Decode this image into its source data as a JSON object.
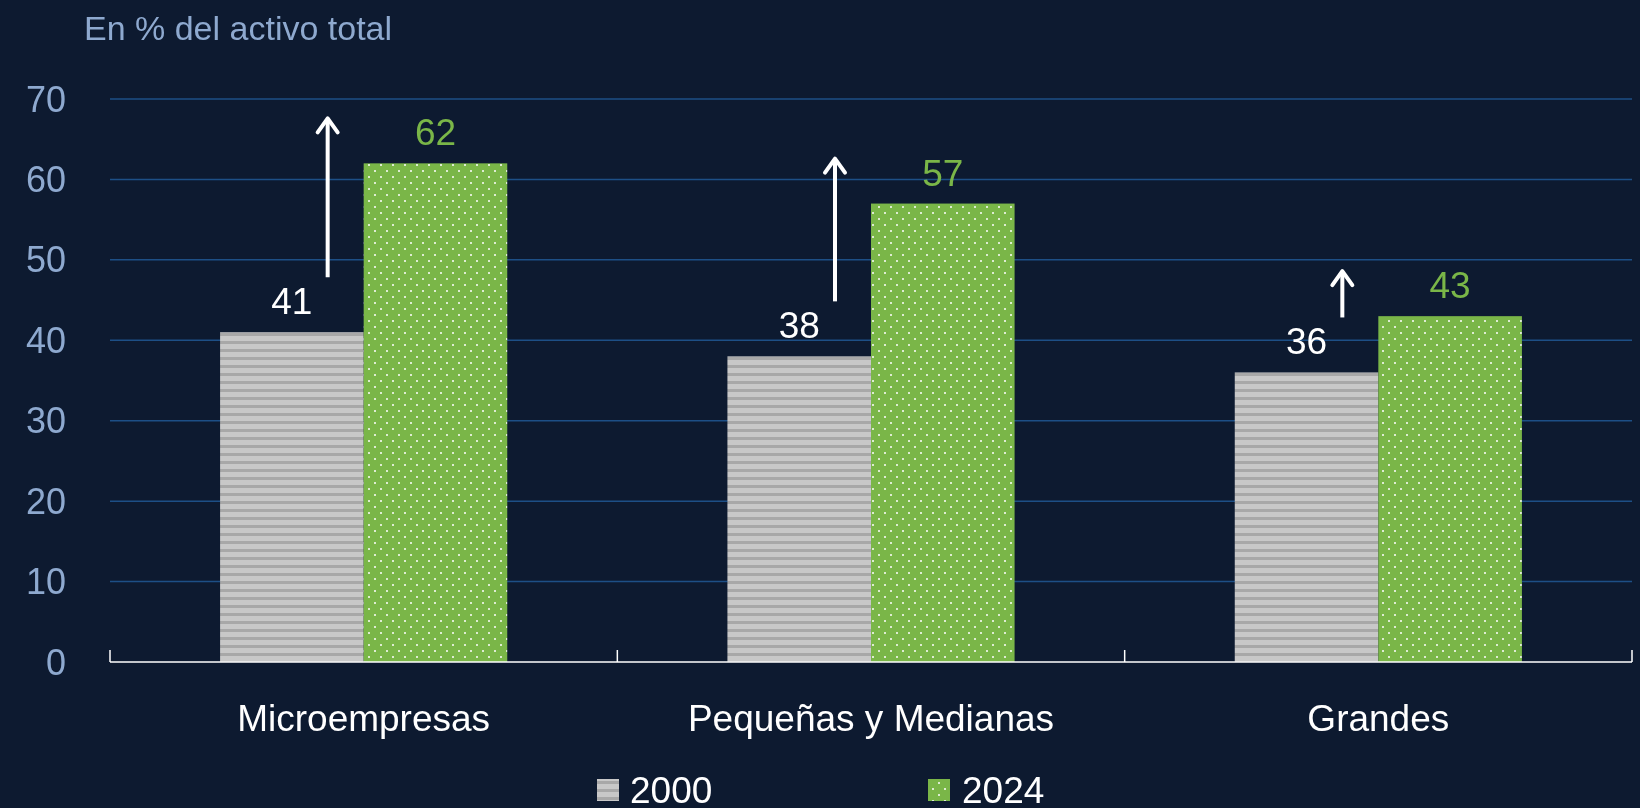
{
  "chart_data": {
    "type": "bar",
    "title": "En % del activo total",
    "categories": [
      "Microempresas",
      "Pequeñas y Medianas",
      "Grandes"
    ],
    "series": [
      {
        "name": "2000",
        "color": "#c8c8c8",
        "values": [
          41,
          38,
          36
        ]
      },
      {
        "name": "2024",
        "color": "#7ab648",
        "values": [
          62,
          57,
          43
        ]
      }
    ],
    "ylim": [
      0,
      70
    ],
    "yticks": [
      0,
      10,
      20,
      30,
      40,
      50,
      60,
      70
    ],
    "grid": "y",
    "legend": "bottom",
    "data_labels": true
  }
}
